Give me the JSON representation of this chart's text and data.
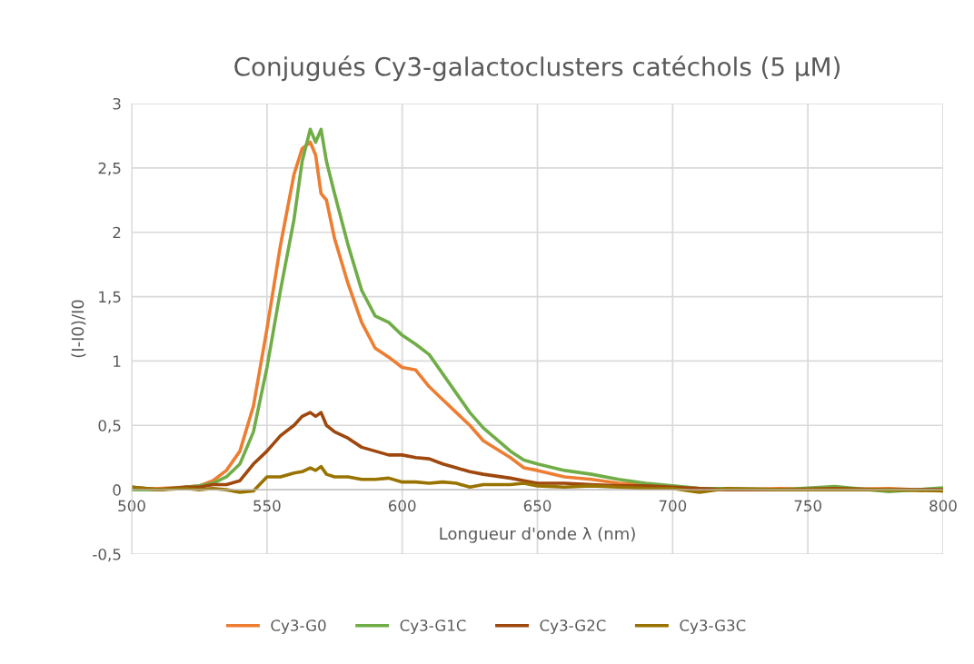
{
  "chart_data": {
    "type": "line",
    "title": "Conjugués Cy3-galactoclusters catéchols (5 µM)",
    "xlabel": "Longueur d'onde λ (nm)",
    "ylabel": "(I-I0)/I0",
    "x": [
      500,
      510,
      520,
      525,
      530,
      535,
      540,
      545,
      550,
      555,
      560,
      563,
      566,
      568,
      570,
      572,
      575,
      580,
      585,
      590,
      595,
      600,
      605,
      610,
      615,
      620,
      625,
      630,
      640,
      645,
      650,
      660,
      670,
      680,
      690,
      700,
      710,
      720,
      740,
      760,
      780,
      800
    ],
    "series": [
      {
        "name": "Cy3-G0",
        "color": "#ed7d31",
        "values": [
          0,
          0.01,
          0.02,
          0.03,
          0.07,
          0.15,
          0.3,
          0.65,
          1.25,
          1.9,
          2.45,
          2.65,
          2.7,
          2.6,
          2.3,
          2.25,
          1.95,
          1.6,
          1.3,
          1.1,
          1.03,
          0.95,
          0.93,
          0.8,
          0.7,
          0.6,
          0.5,
          0.38,
          0.25,
          0.17,
          0.15,
          0.1,
          0.08,
          0.05,
          0.04,
          0.02,
          0.01,
          0,
          0.01,
          0,
          0.01,
          -0.01
        ]
      },
      {
        "name": "Cy3-G1C",
        "color": "#70ad47",
        "values": [
          0,
          0,
          0.02,
          0.03,
          0.05,
          0.1,
          0.2,
          0.45,
          0.95,
          1.55,
          2.1,
          2.55,
          2.8,
          2.7,
          2.8,
          2.55,
          2.3,
          1.9,
          1.55,
          1.35,
          1.3,
          1.2,
          1.13,
          1.05,
          0.9,
          0.75,
          0.6,
          0.48,
          0.3,
          0.23,
          0.2,
          0.15,
          0.12,
          0.08,
          0.05,
          0.03,
          0.01,
          0.01,
          0,
          0.025,
          -0.015,
          0.015
        ]
      },
      {
        "name": "Cy3-G2C",
        "color": "#9e480e",
        "values": [
          0.02,
          0,
          0.02,
          0.02,
          0.04,
          0.04,
          0.07,
          0.2,
          0.3,
          0.42,
          0.5,
          0.57,
          0.6,
          0.57,
          0.6,
          0.5,
          0.45,
          0.4,
          0.33,
          0.3,
          0.27,
          0.27,
          0.25,
          0.24,
          0.2,
          0.17,
          0.14,
          0.12,
          0.09,
          0.07,
          0.05,
          0.05,
          0.04,
          0.03,
          0.03,
          0.02,
          0.01,
          0,
          0,
          0.01,
          0,
          0
        ]
      },
      {
        "name": "Cy3-G3C",
        "color": "#997300",
        "values": [
          0.02,
          0,
          0.01,
          0,
          0.01,
          0,
          -0.02,
          -0.01,
          0.1,
          0.1,
          0.13,
          0.14,
          0.17,
          0.15,
          0.18,
          0.12,
          0.1,
          0.1,
          0.08,
          0.08,
          0.09,
          0.06,
          0.06,
          0.05,
          0.06,
          0.05,
          0.02,
          0.04,
          0.04,
          0.05,
          0.03,
          0.02,
          0.03,
          0.02,
          0.01,
          0.01,
          -0.02,
          0.01,
          0,
          0,
          0,
          -0.01
        ]
      }
    ],
    "xlim": [
      500,
      800
    ],
    "xticks": [
      500,
      550,
      600,
      650,
      700,
      750,
      800
    ],
    "ylim": [
      -0.5,
      3
    ],
    "yticks": [
      {
        "value": -0.5,
        "label": "-0,5"
      },
      0,
      {
        "value": 0.5,
        "label": "0,5"
      },
      1,
      {
        "value": 1.5,
        "label": "1,5"
      },
      2,
      {
        "value": 2.5,
        "label": "2,5"
      },
      3
    ],
    "grid": true,
    "legend": "bottom",
    "marker": "none",
    "line_style": "solid"
  }
}
